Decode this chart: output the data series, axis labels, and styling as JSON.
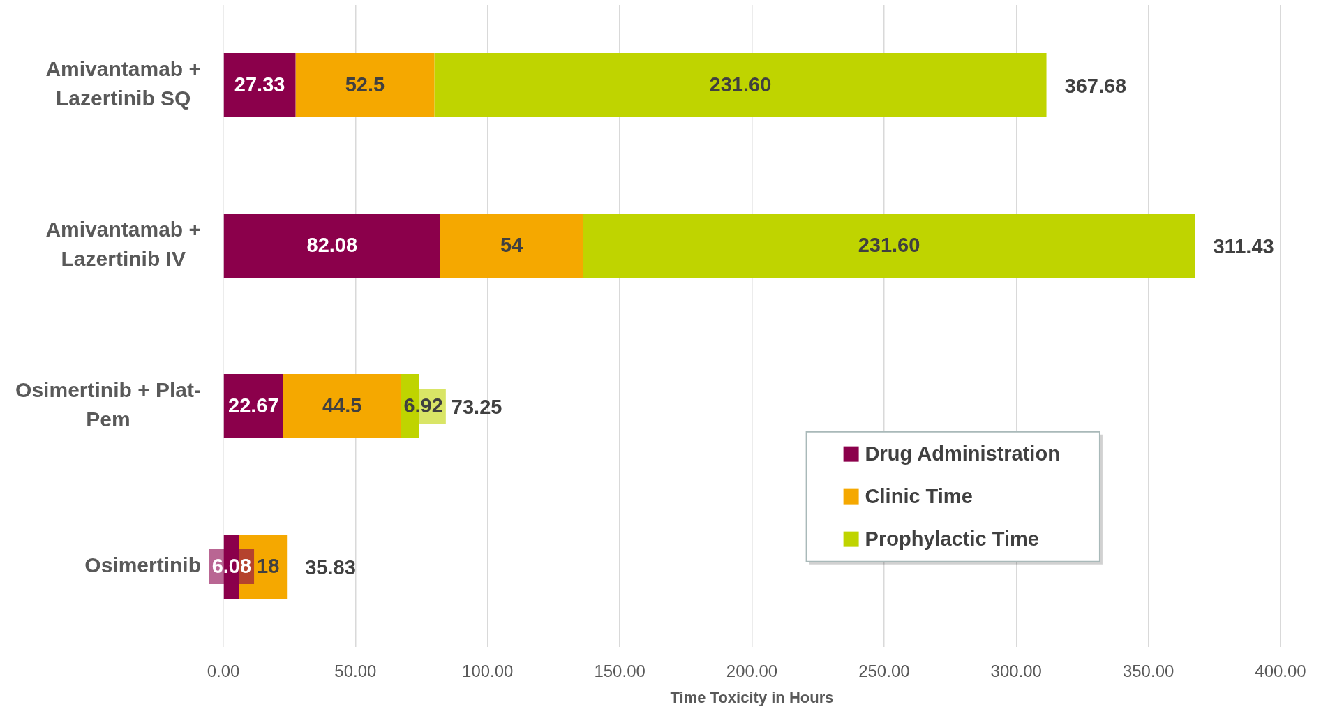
{
  "chart_data": {
    "type": "bar",
    "orientation": "horizontal",
    "stacked": true,
    "categories": [
      "Amivantamab + Lazertinib SQ",
      "Amivantamab + Lazertinib IV",
      "Osimertinib + Plat-Pem",
      "Osimertinib"
    ],
    "series": [
      {
        "name": "Drug Administration",
        "color": "#8b004b",
        "values": [
          27.33,
          82.08,
          22.67,
          6.08
        ],
        "value_labels": [
          "27.33",
          "82.08",
          "22.67",
          "6.08"
        ]
      },
      {
        "name": "Clinic Time",
        "color": "#f5a800",
        "values": [
          52.5,
          54,
          44.5,
          18
        ],
        "value_labels": [
          "52.5",
          "54",
          "44.5",
          "18"
        ]
      },
      {
        "name": "Prophylactic Time",
        "color": "#bfd400",
        "values": [
          231.6,
          231.6,
          6.92,
          null
        ],
        "value_labels": [
          "231.60",
          "231.60",
          "6.92",
          null
        ]
      }
    ],
    "annotations": [
      {
        "text": "367.68",
        "x": 311.43,
        "y": "Amivantamab + Lazertinib SQ"
      },
      {
        "text": "311.43",
        "x": 367.68,
        "y": "Amivantamab + Lazertinib IV"
      },
      {
        "text": "73.25",
        "x": 74.09,
        "y": "Osimertinib + Plat-Pem"
      },
      {
        "text": "35.83",
        "x": 24.08,
        "y": "Osimertinib"
      }
    ],
    "xlabel": "Time Toxicity in Hours",
    "xlim": [
      0,
      400
    ],
    "xticks": [
      {
        "value": 0,
        "label": "0.00"
      },
      {
        "value": 50,
        "label": "50.00"
      },
      {
        "value": 100,
        "label": "100.00"
      },
      {
        "value": 150,
        "label": "150.00"
      },
      {
        "value": 200,
        "label": "200.00"
      },
      {
        "value": 250,
        "label": "250.00"
      },
      {
        "value": 300,
        "label": "300.00"
      },
      {
        "value": 350,
        "label": "350.00"
      },
      {
        "value": 400,
        "label": "400.00"
      }
    ],
    "grid": "x",
    "legend": "bottom right"
  }
}
